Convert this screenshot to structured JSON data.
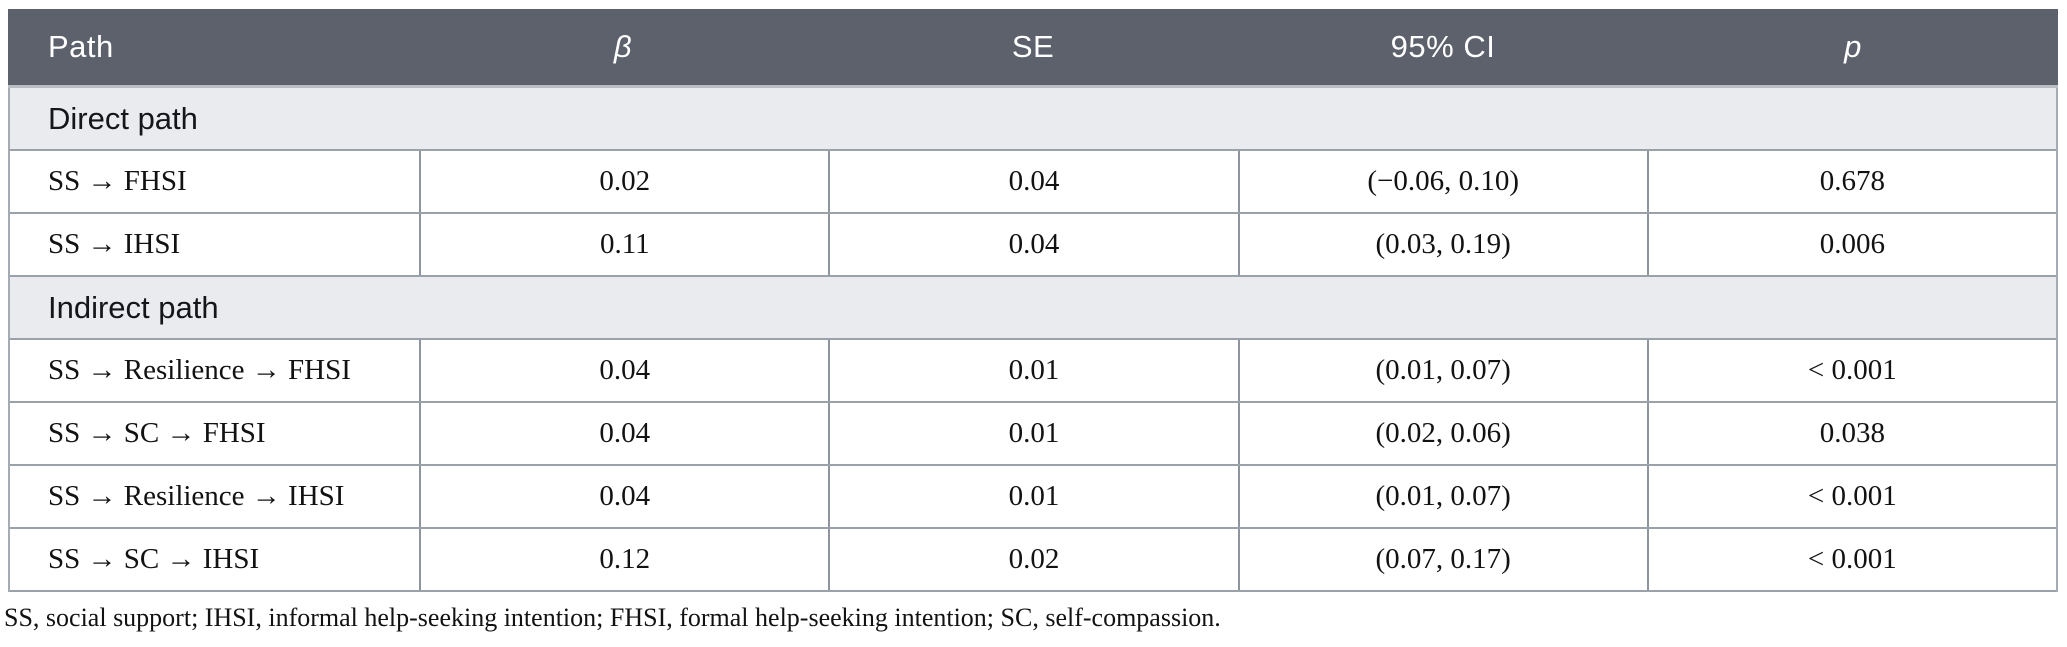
{
  "colors": {
    "header_bg": "#5c616c",
    "section_bg": "#e9ebef",
    "row_border": "#9ba1a9"
  },
  "header": {
    "path": "Path",
    "beta": "β",
    "se": "SE",
    "ci": "95% CI",
    "p": "p"
  },
  "sections": [
    {
      "title": "Direct path",
      "rows": [
        {
          "path": "SS → FHSI",
          "beta": "0.02",
          "se": "0.04",
          "ci": "(−0.06, 0.10)",
          "p": "0.678"
        },
        {
          "path": "SS → IHSI",
          "beta": "0.11",
          "se": "0.04",
          "ci": "(0.03, 0.19)",
          "p": "0.006"
        }
      ]
    },
    {
      "title": "Indirect path",
      "rows": [
        {
          "path": "SS → Resilience → FHSI",
          "beta": "0.04",
          "se": "0.01",
          "ci": "(0.01, 0.07)",
          "p": "< 0.001"
        },
        {
          "path": "SS → SC → FHSI",
          "beta": "0.04",
          "se": "0.01",
          "ci": "(0.02, 0.06)",
          "p": "0.038"
        },
        {
          "path": "SS → Resilience → IHSI",
          "beta": "0.04",
          "se": "0.01",
          "ci": "(0.01, 0.07)",
          "p": "< 0.001"
        },
        {
          "path": "SS → SC → IHSI",
          "beta": "0.12",
          "se": "0.02",
          "ci": "(0.07, 0.17)",
          "p": "< 0.001"
        }
      ]
    }
  ],
  "footnote": "SS, social support; IHSI, informal help-seeking intention; FHSI, formal help-seeking intention; SC, self-compassion."
}
